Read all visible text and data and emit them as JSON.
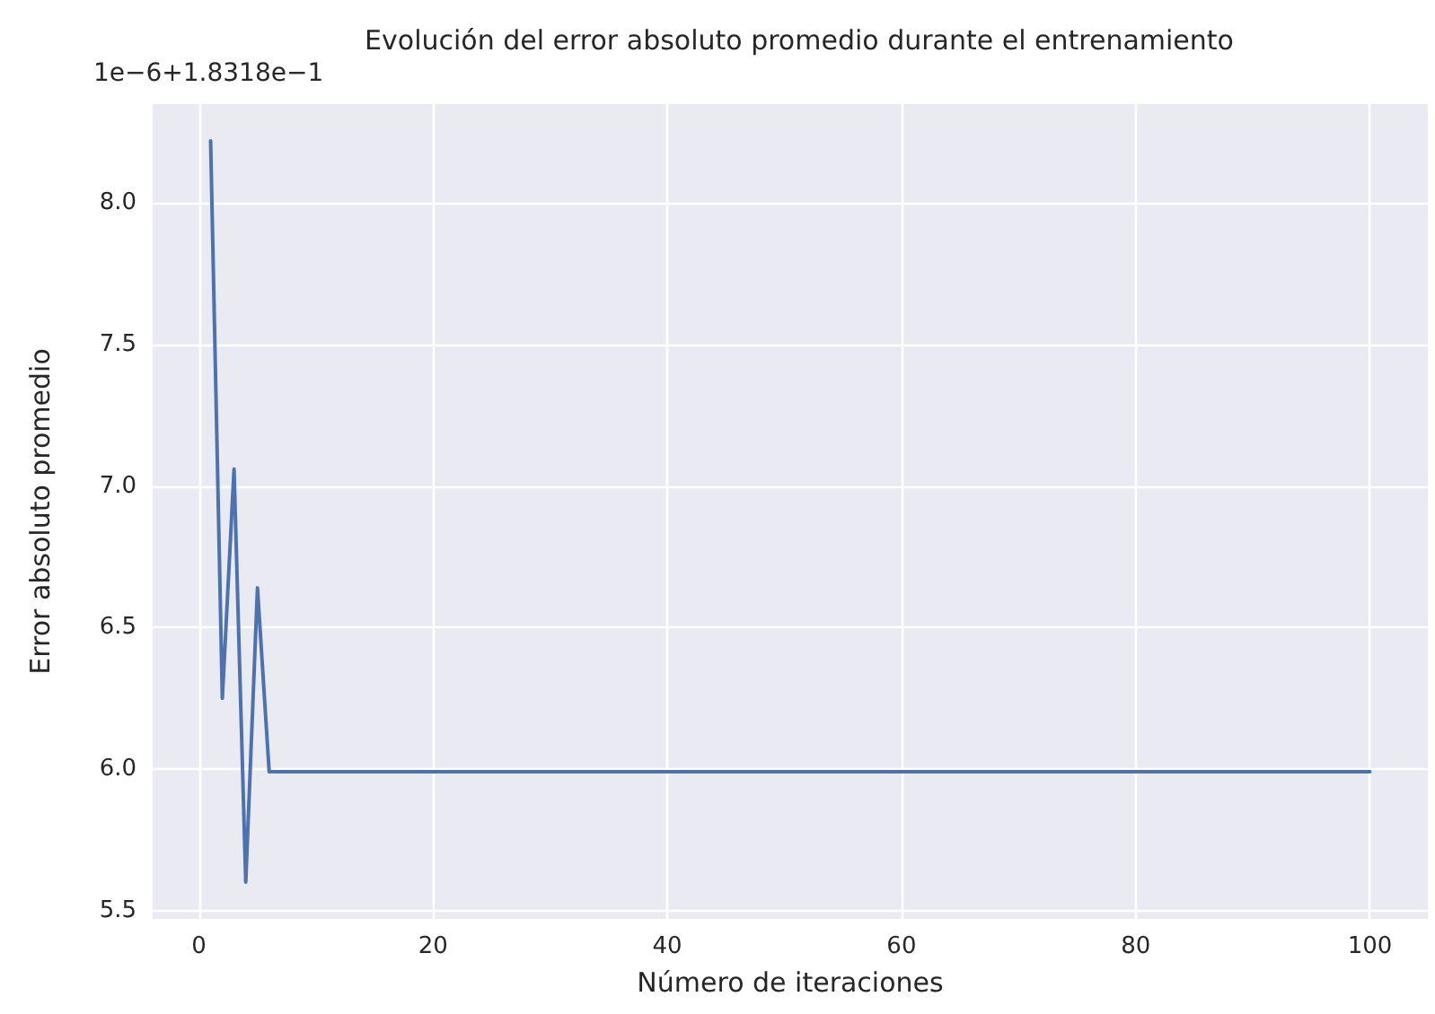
{
  "chart_data": {
    "type": "line",
    "title": "Evolución del error absoluto promedio durante el entrenamiento",
    "xlabel": "Número de iteraciones",
    "ylabel": "Error absoluto promedio",
    "annotations": [
      "1e−6+1.8318e−1"
    ],
    "x": [
      1,
      2,
      3,
      4,
      5,
      6,
      100
    ],
    "series": [
      {
        "color": "#4c72b0",
        "values": [
          8.22,
          6.25,
          7.06,
          5.6,
          6.64,
          5.99,
          5.99
        ]
      }
    ],
    "xlim": [
      -3.95,
      104.95
    ],
    "xticks": [
      0,
      20,
      40,
      60,
      80,
      100
    ],
    "ylim": [
      5.47,
      8.35
    ],
    "yticks": [
      5.5,
      {
        "value": 6,
        "label": "6.0"
      },
      6.5,
      {
        "value": 7,
        "label": "7.0"
      },
      7.5,
      {
        "value": 8,
        "label": "8.0"
      }
    ],
    "grid": true,
    "marker": "none",
    "line_style": "solid"
  }
}
